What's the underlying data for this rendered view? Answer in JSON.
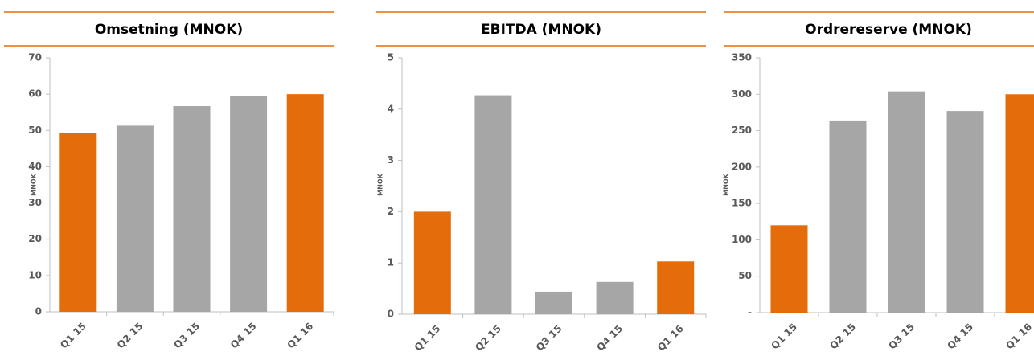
{
  "chart_data": [
    {
      "type": "bar",
      "title": "Omsetning (MNOK)",
      "y_label": "MNOK",
      "categories": [
        "Q1 15",
        "Q2 15",
        "Q3 15",
        "Q4 15",
        "Q1 16"
      ],
      "values": [
        49.2,
        51.3,
        56.7,
        59.4,
        60.0
      ],
      "colors": [
        "#e46c0a",
        "#a6a6a6",
        "#a6a6a6",
        "#a6a6a6",
        "#e46c0a"
      ],
      "ylim": [
        0,
        70
      ],
      "yticks": [
        0,
        10,
        20,
        30,
        40,
        50,
        60,
        70
      ]
    },
    {
      "type": "bar",
      "title": "EBITDA (MNOK)",
      "y_label": "MNOK",
      "categories": [
        "Q1 15",
        "Q2 15",
        "Q3 15",
        "Q4 15",
        "Q1 16"
      ],
      "values": [
        2.0,
        4.27,
        0.44,
        0.63,
        1.03
      ],
      "colors": [
        "#e46c0a",
        "#a6a6a6",
        "#a6a6a6",
        "#a6a6a6",
        "#e46c0a"
      ],
      "ylim": [
        0,
        5
      ],
      "yticks": [
        0,
        1,
        2,
        3,
        4,
        5
      ]
    },
    {
      "type": "bar",
      "title": "Ordrereserve (MNOK)",
      "y_label": "MNOK",
      "categories": [
        "Q1 15",
        "Q2 15",
        "Q3 15",
        "Q4 15",
        "Q1 16"
      ],
      "values": [
        120,
        264,
        304,
        277,
        300
      ],
      "colors": [
        "#e46c0a",
        "#a6a6a6",
        "#a6a6a6",
        "#a6a6a6",
        "#e46c0a"
      ],
      "ylim": [
        0,
        350
      ],
      "yticks": [
        {
          "value": 0,
          "label": "-"
        },
        50,
        100,
        150,
        200,
        250,
        300,
        350
      ]
    }
  ]
}
